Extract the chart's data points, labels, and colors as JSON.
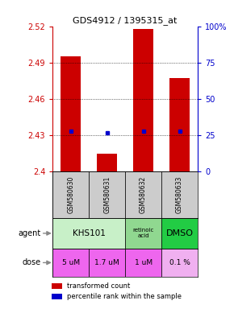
{
  "title": "GDS4912 / 1395315_at",
  "samples": [
    "GSM580630",
    "GSM580631",
    "GSM580632",
    "GSM580633"
  ],
  "bar_bottoms": [
    2.4,
    2.4,
    2.4,
    2.4
  ],
  "bar_tops": [
    2.495,
    2.415,
    2.518,
    2.477
  ],
  "bar_color": "#cc0000",
  "percentile_values": [
    2.433,
    2.432,
    2.433,
    2.433
  ],
  "percentile_color": "#0000cc",
  "ylim": [
    2.4,
    2.52
  ],
  "yticks_left": [
    2.4,
    2.43,
    2.46,
    2.49,
    2.52
  ],
  "yticks_right": [
    0,
    25,
    50,
    75,
    100
  ],
  "yticks_right_labels": [
    "0",
    "25",
    "50",
    "75",
    "100%"
  ],
  "left_tick_color": "#cc0000",
  "right_tick_color": "#0000cc",
  "agent_colors": [
    "#c8f0c8",
    "#c8f0c8",
    "#90d890",
    "#22cc44"
  ],
  "dose_colors": [
    "#ee66ee",
    "#ee66ee",
    "#ee66ee",
    "#f0b0f0"
  ],
  "dose_labels": [
    "5 uM",
    "1.7 uM",
    "1 uM",
    "0.1 %"
  ],
  "sample_bg_color": "#cccccc",
  "legend_bar_color": "#cc0000",
  "legend_dot_color": "#0000cc",
  "legend_label1": "transformed count",
  "legend_label2": "percentile rank within the sample"
}
